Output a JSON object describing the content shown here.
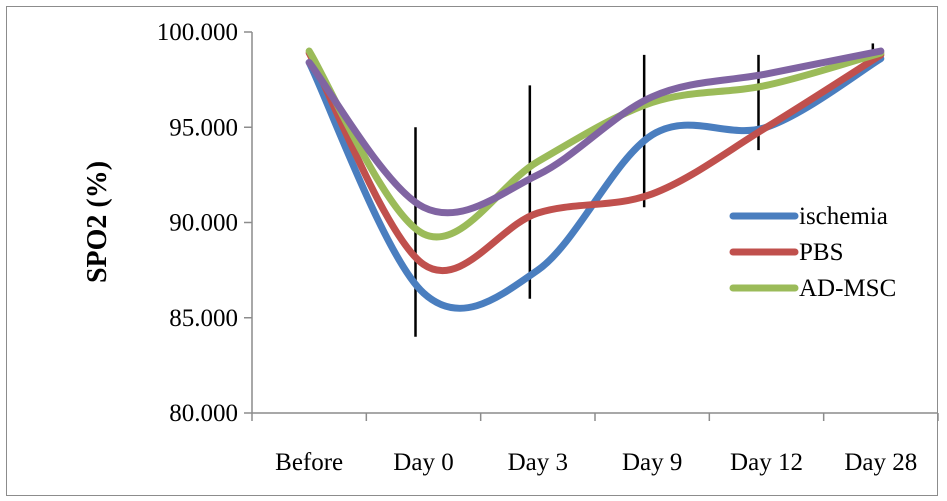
{
  "chart_data": {
    "type": "line",
    "title": "",
    "xlabel": "",
    "ylabel": "SPO2 (%)",
    "categories": [
      "Before",
      "Day 0",
      "Day 3",
      "Day 9",
      "Day 12",
      "Day 28"
    ],
    "ylim": [
      80,
      100
    ],
    "yticks": [
      80,
      85,
      90,
      95,
      100
    ],
    "ytick_labels": [
      "80.000",
      "85.000",
      "90.000",
      "95.000",
      "100.000"
    ],
    "grid": false,
    "legend_position": "right",
    "series": [
      {
        "name": "ischemia",
        "color": "#4a7ebf",
        "values": [
          98.4,
          86.3,
          87.5,
          94.6,
          95.0,
          98.6
        ]
      },
      {
        "name": "PBS",
        "color": "#c0504d",
        "values": [
          98.9,
          87.8,
          90.5,
          91.5,
          95.0,
          98.8
        ]
      },
      {
        "name": "AD-MSC",
        "color": "#9bbb59",
        "values": [
          99.0,
          89.4,
          93.2,
          96.3,
          97.2,
          98.9
        ]
      },
      {
        "name": "",
        "color": "#8064a2",
        "values": [
          98.4,
          90.8,
          92.5,
          96.6,
          97.8,
          99.0
        ]
      }
    ],
    "error_bars": [
      {
        "category": "Day 0",
        "low": 84.0,
        "high": 95.0
      },
      {
        "category": "Day 3",
        "low": 86.0,
        "high": 97.2
      },
      {
        "category": "Day 9",
        "low": 90.8,
        "high": 98.8
      },
      {
        "category": "Day 12",
        "low": 93.8,
        "high": 98.8
      },
      {
        "category": "Day 28",
        "low": 98.2,
        "high": 99.4
      }
    ]
  }
}
